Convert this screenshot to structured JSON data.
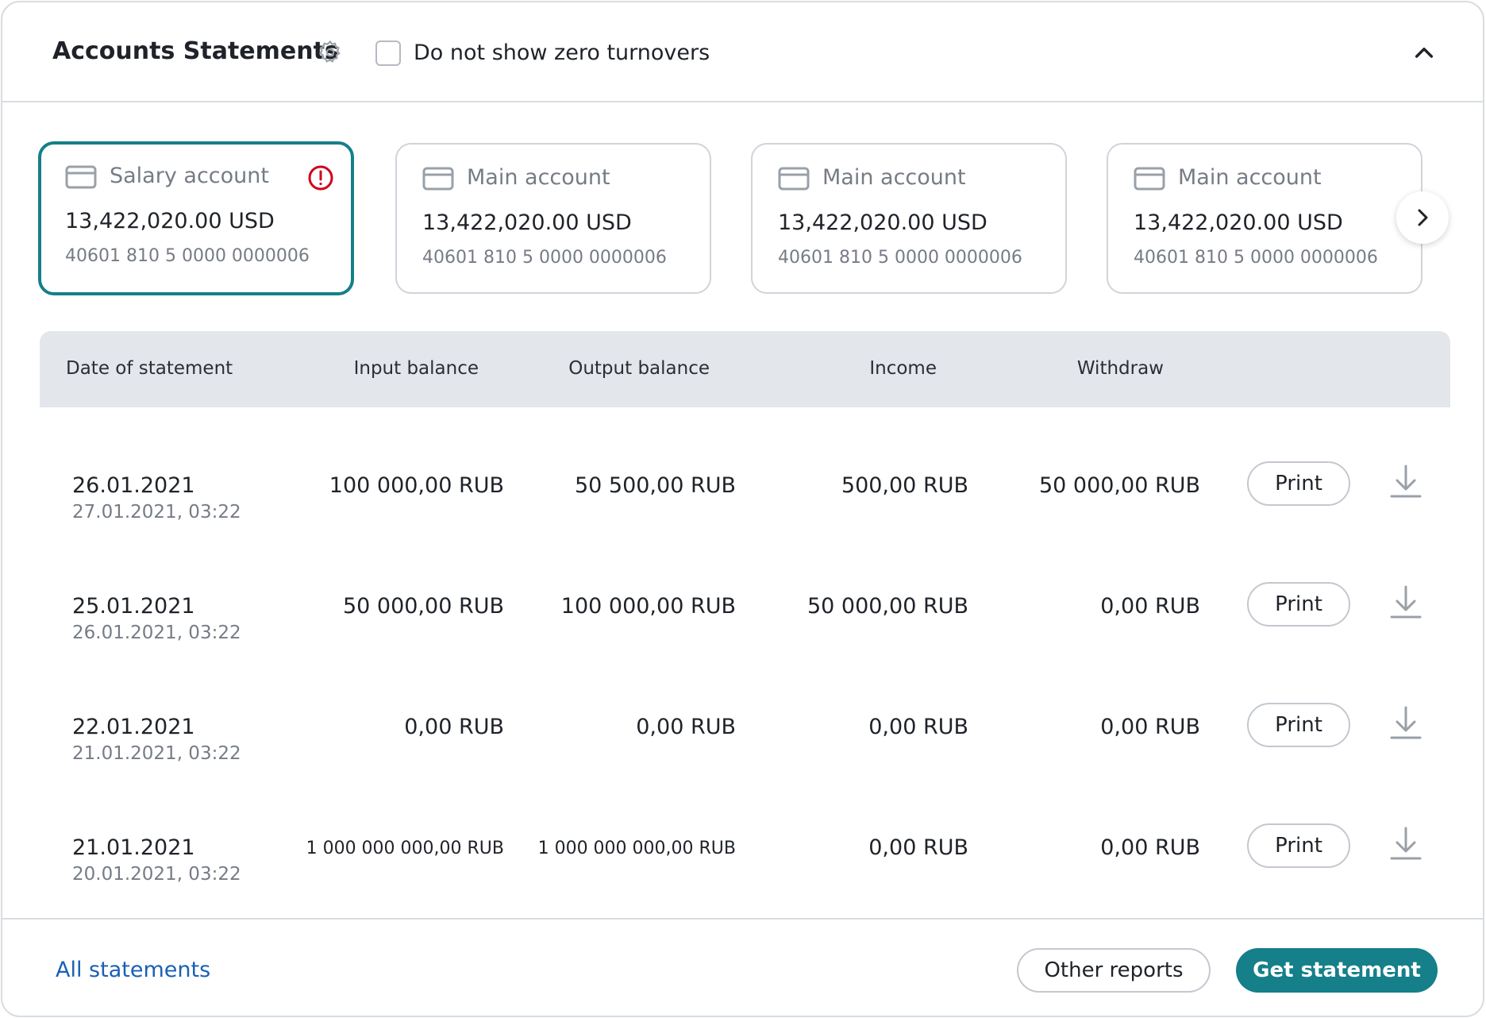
{
  "header": {
    "title": "Accounts Statements",
    "settings_icon": "gear-icon",
    "zero_turnovers_label": "Do not show zero turnovers",
    "zero_turnovers_checked": false,
    "collapse_icon": "chevron-up-icon"
  },
  "accounts": [
    {
      "name": "Salary account",
      "amount": "13,422,020.00 USD",
      "number": "40601 810 5 0000 0000006",
      "selected": true,
      "alert": true
    },
    {
      "name": "Main account",
      "amount": "13,422,020.00 USD",
      "number": "40601 810 5 0000 0000006",
      "selected": false,
      "alert": false
    },
    {
      "name": "Main account",
      "amount": "13,422,020.00 USD",
      "number": "40601 810 5 0000 0000006",
      "selected": false,
      "alert": false
    },
    {
      "name": "Main account",
      "amount": "13,422,020.00 USD",
      "number": "40601 810 5 0000 0000006",
      "selected": false,
      "alert": false
    }
  ],
  "table": {
    "columns": {
      "date": "Date of statement",
      "input": "Input balance",
      "output": "Output balance",
      "income": "Income",
      "withdraw": "Withdraw"
    },
    "rows": [
      {
        "date": "26.01.2021",
        "time": "27.01.2021, 03:22",
        "input": "100 000,00 RUB",
        "output": "50 500,00 RUB",
        "income": "500,00 RUB",
        "withdraw": "50 000,00 RUB",
        "print": "Print"
      },
      {
        "date": "25.01.2021",
        "time": "26.01.2021, 03:22",
        "input": "50 000,00 RUB",
        "output": "100 000,00 RUB",
        "income": "50 000,00 RUB",
        "withdraw": "0,00 RUB",
        "print": "Print"
      },
      {
        "date": "22.01.2021",
        "time": "21.01.2021, 03:22",
        "input": "0,00 RUB",
        "output": "0,00 RUB",
        "income": "0,00 RUB",
        "withdraw": "0,00 RUB",
        "print": "Print"
      },
      {
        "date": "21.01.2021",
        "time": "20.01.2021, 03:22",
        "input": "1 000 000 000,00 RUB",
        "output": "1 000 000 000,00 RUB",
        "income": "0,00 RUB",
        "withdraw": "0,00 RUB",
        "print": "Print"
      }
    ]
  },
  "footer": {
    "all_statements": "All statements",
    "other_reports": "Other reports",
    "get_statement": "Get statement"
  },
  "colors": {
    "accent": "#157f8a",
    "link": "#1a5fb4",
    "alert": "#d0021b",
    "header_bg": "#e3e6ea"
  }
}
